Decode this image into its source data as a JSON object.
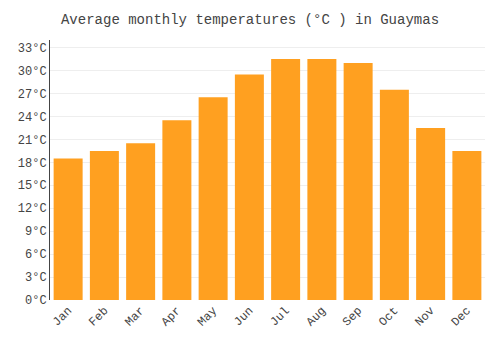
{
  "chart_data": {
    "type": "bar",
    "title": "Average monthly temperatures (°C ) in Guaymas",
    "categories": [
      "Jan",
      "Feb",
      "Mar",
      "Apr",
      "May",
      "Jun",
      "Jul",
      "Aug",
      "Sep",
      "Oct",
      "Nov",
      "Dec"
    ],
    "values": [
      18.5,
      19.5,
      20.5,
      23.5,
      26.5,
      29.5,
      31.5,
      31.5,
      31.0,
      27.5,
      22.5,
      19.5
    ],
    "color": "#FFA020",
    "ylim": [
      0,
      34
    ],
    "yticks": [
      {
        "value": 0,
        "label": "0°C"
      },
      {
        "value": 3,
        "label": "3°C"
      },
      {
        "value": 6,
        "label": "6°C"
      },
      {
        "value": 9,
        "label": "9°C"
      },
      {
        "value": 12,
        "label": "12°C"
      },
      {
        "value": 15,
        "label": "15°C"
      },
      {
        "value": 18,
        "label": "18°C"
      },
      {
        "value": 21,
        "label": "21°C"
      },
      {
        "value": 24,
        "label": "24°C"
      },
      {
        "value": 27,
        "label": "27°C"
      },
      {
        "value": 30,
        "label": "30°C"
      },
      {
        "value": 33,
        "label": "33°C"
      }
    ],
    "grid": true
  }
}
